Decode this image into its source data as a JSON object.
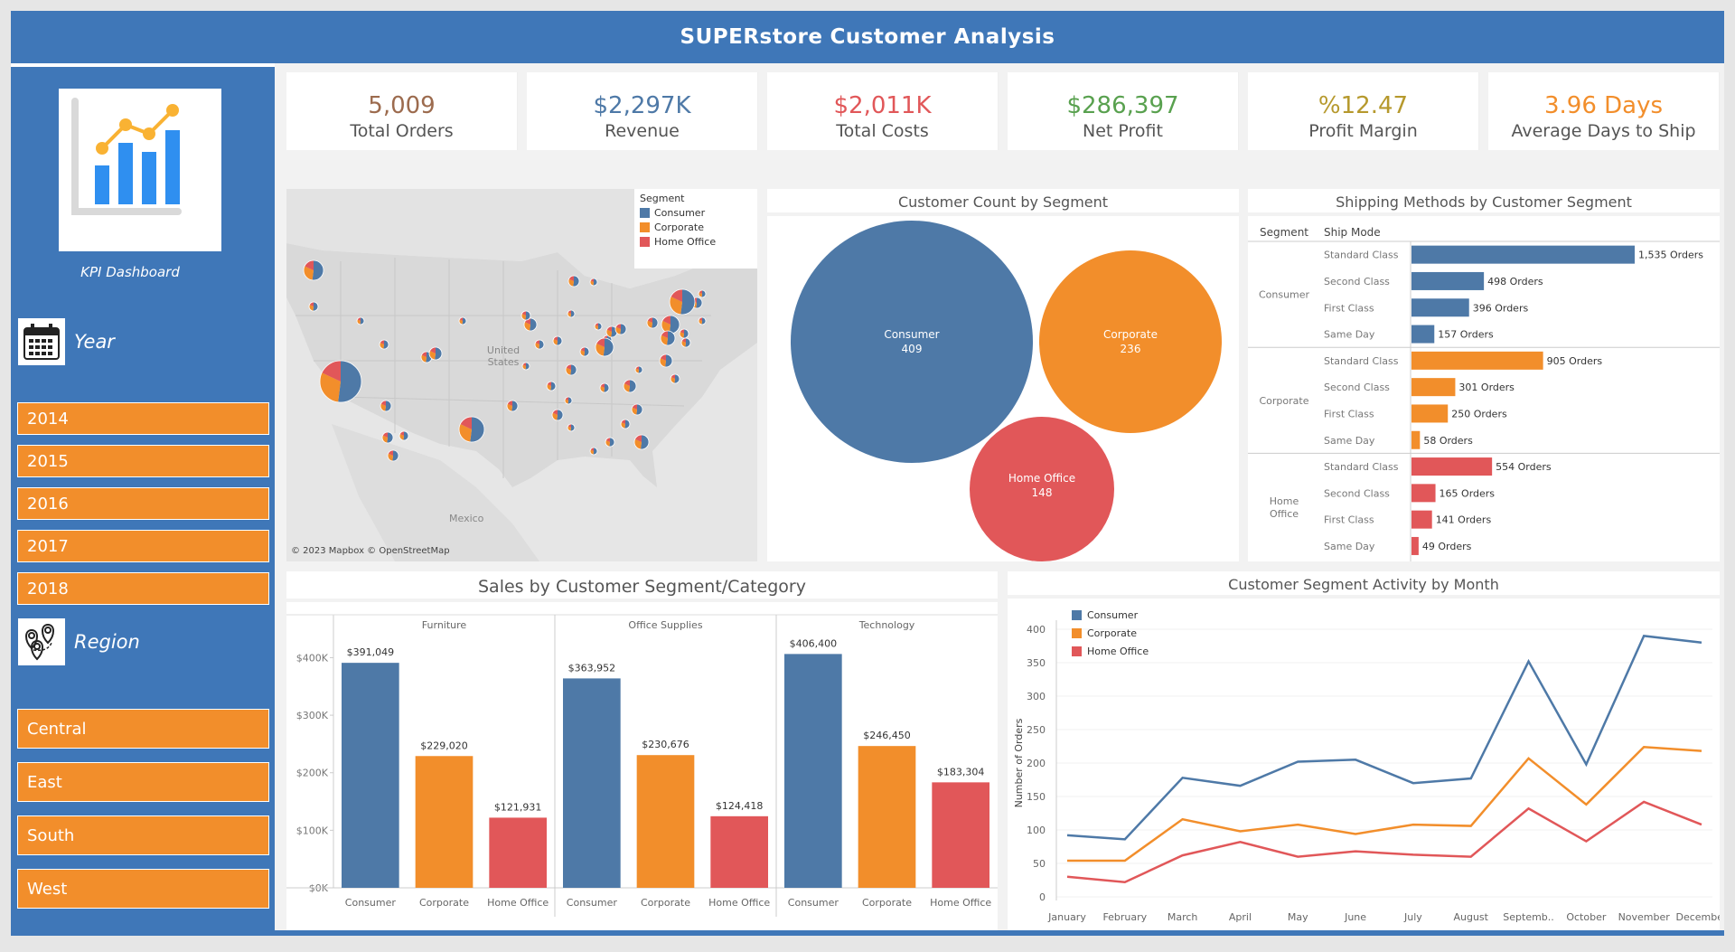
{
  "header": {
    "brand": "SUPERstore",
    "title": "Customer Analysis"
  },
  "sidebar": {
    "logo_caption": "KPI Dashboard",
    "year_label": "Year",
    "years": [
      "2014",
      "2015",
      "2016",
      "2017",
      "2018"
    ],
    "region_label": "Region",
    "regions": [
      "Central",
      "East",
      "South",
      "West"
    ]
  },
  "kpis": [
    {
      "value": "5,009",
      "label": "Total Orders",
      "color": "#9c6b4e"
    },
    {
      "value": "$2,297K",
      "label": "Revenue",
      "color": "#4e79a7"
    },
    {
      "value": "$2,011K",
      "label": "Total Costs",
      "color": "#e15759"
    },
    {
      "value": "$286,397",
      "label": "Net Profit",
      "color": "#59a14f"
    },
    {
      "value": "%12.47",
      "label": "Profit Margin",
      "color": "#b6992d"
    },
    {
      "value": "3.96 Days",
      "label": "Average Days to Ship",
      "color": "#f28e2b"
    }
  ],
  "colors": {
    "consumer": "#4e79a7",
    "corporate": "#f28e2b",
    "home_office": "#e15759",
    "header": "#3f77b8"
  },
  "map": {
    "legend_title": "Segment",
    "legend": [
      "Consumer",
      "Corporate",
      "Home Office"
    ],
    "label_us": "United States",
    "label_mexico": "Mexico",
    "credit": "© 2023 Mapbox © OpenStreetMap"
  },
  "bubble": {
    "title": "Customer Count by Segment",
    "items": [
      {
        "name": "Consumer",
        "value": "409"
      },
      {
        "name": "Corporate",
        "value": "236"
      },
      {
        "name": "Home Office",
        "value": "148"
      }
    ]
  },
  "shipping": {
    "title": "Shipping Methods by Customer Segment",
    "col_segment": "Segment",
    "col_mode": "Ship Mode",
    "groups": [
      {
        "segment": "Consumer",
        "rows": [
          {
            "mode": "Standard Class",
            "value": 1535,
            "label": "1,535 Orders"
          },
          {
            "mode": "Second Class",
            "value": 498,
            "label": "498 Orders"
          },
          {
            "mode": "First Class",
            "value": 396,
            "label": "396 Orders"
          },
          {
            "mode": "Same Day",
            "value": 157,
            "label": "157 Orders"
          }
        ]
      },
      {
        "segment": "Corporate",
        "rows": [
          {
            "mode": "Standard Class",
            "value": 905,
            "label": "905 Orders"
          },
          {
            "mode": "Second Class",
            "value": 301,
            "label": "301 Orders"
          },
          {
            "mode": "First Class",
            "value": 250,
            "label": "250 Orders"
          },
          {
            "mode": "Same Day",
            "value": 58,
            "label": "58 Orders"
          }
        ]
      },
      {
        "segment": "Home Office",
        "rows": [
          {
            "mode": "Standard Class",
            "value": 554,
            "label": "554 Orders"
          },
          {
            "mode": "Second Class",
            "value": 165,
            "label": "165 Orders"
          },
          {
            "mode": "First Class",
            "value": 141,
            "label": "141 Orders"
          },
          {
            "mode": "Same Day",
            "value": 49,
            "label": "49 Orders"
          }
        ]
      }
    ]
  },
  "chart_data": [
    {
      "type": "bar",
      "title": "Sales by Customer Segment/Category",
      "panels": [
        "Furniture",
        "Office Supplies",
        "Technology"
      ],
      "categories": [
        "Consumer",
        "Corporate",
        "Home Office"
      ],
      "ytick_labels": [
        "$0K",
        "$100K",
        "$200K",
        "$300K",
        "$400K"
      ],
      "yticks": [
        0,
        100000,
        200000,
        300000,
        400000
      ],
      "ylim": [
        0,
        440000
      ],
      "values": [
        [
          391049,
          229020,
          121931
        ],
        [
          363952,
          230676,
          124418
        ],
        [
          406400,
          246450,
          183304
        ]
      ],
      "labels": [
        [
          "$391,049",
          "$229,020",
          "$121,931"
        ],
        [
          "$363,952",
          "$230,676",
          "$124,418"
        ],
        [
          "$406,400",
          "$246,450",
          "$183,304"
        ]
      ]
    },
    {
      "type": "line",
      "title": "Customer Segment Activity by Month",
      "ylabel": "Number of Orders",
      "ylim": [
        0,
        400
      ],
      "yticks": [
        0,
        50,
        100,
        150,
        200,
        250,
        300,
        350,
        400
      ],
      "x": [
        "January",
        "February",
        "March",
        "April",
        "May",
        "June",
        "July",
        "August",
        "Septemb..",
        "October",
        "November",
        "December"
      ],
      "legend": "top-left",
      "series": [
        {
          "name": "Consumer",
          "values": [
            92,
            86,
            178,
            166,
            202,
            205,
            170,
            177,
            352,
            198,
            390,
            380
          ]
        },
        {
          "name": "Corporate",
          "values": [
            54,
            54,
            116,
            98,
            108,
            94,
            108,
            106,
            207,
            138,
            224,
            218
          ]
        },
        {
          "name": "Home Office",
          "values": [
            30,
            22,
            62,
            82,
            60,
            68,
            63,
            60,
            132,
            83,
            142,
            108
          ]
        }
      ]
    }
  ]
}
